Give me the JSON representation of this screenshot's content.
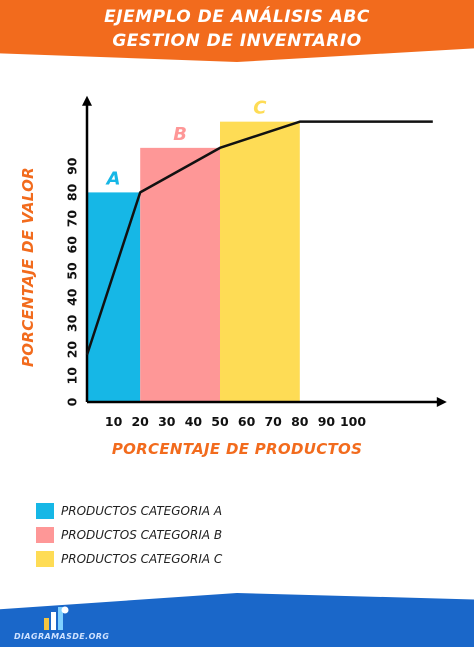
{
  "header": {
    "line1": "EJEMPLO DE ANÁLISIS ABC",
    "line2": "GESTION DE INVENTARIO"
  },
  "chart_data": {
    "type": "bar",
    "xlabel": "PORCENTAJE DE PRODUCTOS",
    "ylabel": "PORCENTAJE DE VALOR",
    "xlim": [
      0,
      130
    ],
    "ylim": [
      0,
      110
    ],
    "x_ticks": [
      10,
      20,
      30,
      40,
      50,
      60,
      70,
      80,
      90,
      100
    ],
    "y_ticks": [
      0,
      10,
      20,
      30,
      40,
      50,
      60,
      70,
      80,
      90
    ],
    "bars": [
      {
        "label": "A",
        "x_start": 0,
        "x_end": 20,
        "value": 80,
        "color": "#16b7e6"
      },
      {
        "label": "B",
        "x_start": 20,
        "x_end": 50,
        "value": 97,
        "color": "#fe9797"
      },
      {
        "label": "C",
        "x_start": 50,
        "x_end": 80,
        "value": 107,
        "color": "#fedc55"
      }
    ],
    "line": {
      "x": [
        0,
        20,
        50,
        80,
        130
      ],
      "y": [
        18,
        80,
        97,
        107,
        107
      ]
    }
  },
  "legend": [
    {
      "label": "PRODUCTOS CATEGORIA A",
      "color": "#16b7e6"
    },
    {
      "label": "PRODUCTOS CATEGORIA B",
      "color": "#fe9797"
    },
    {
      "label": "PRODUCTOS CATEGORIA C",
      "color": "#fedc55"
    }
  ],
  "colors": {
    "accent": "#f26b1d",
    "footer": "#1a67c9",
    "axis": "#000000"
  },
  "footer": {
    "brand": "DIAGRAMASDE.ORG",
    "logo_icon": "bar-chart-icon"
  }
}
